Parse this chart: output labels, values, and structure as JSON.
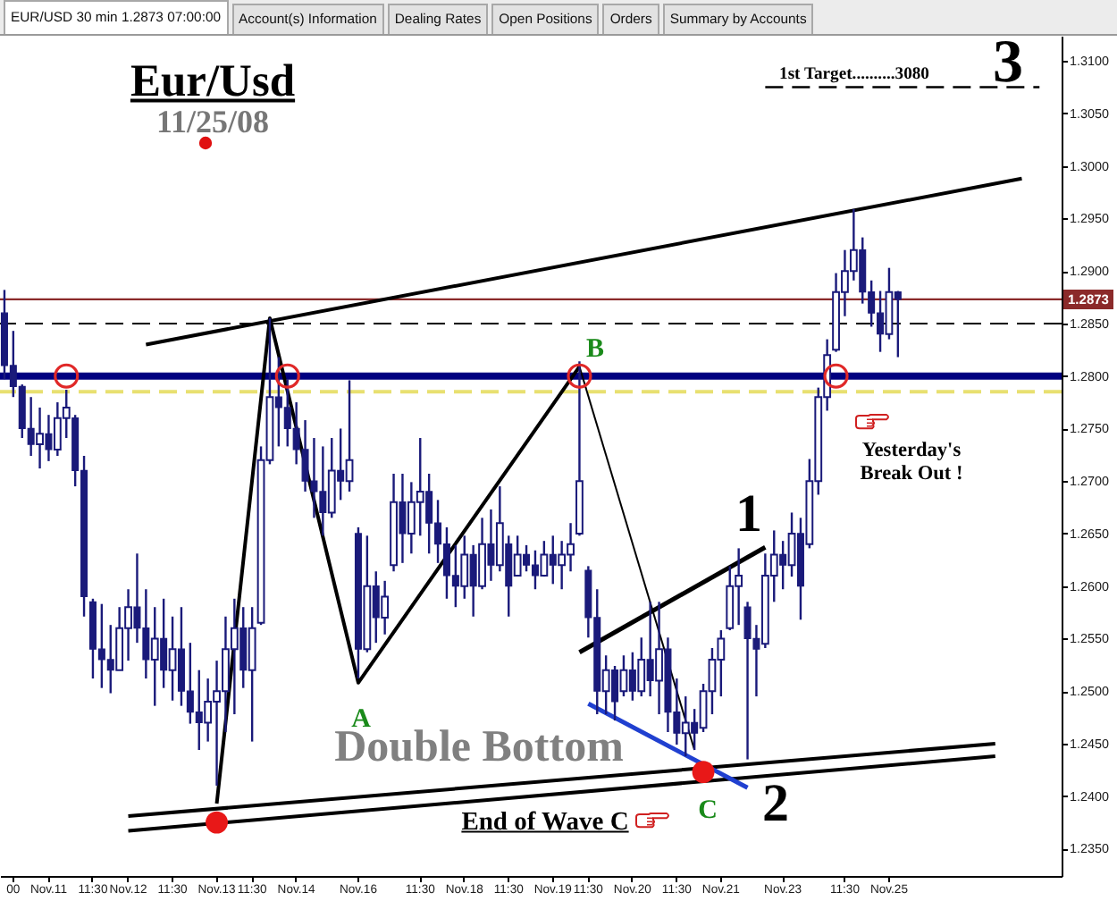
{
  "chart_data": {
    "type": "candlestick",
    "title": "Eur/Usd",
    "subtitle": "11/25/08",
    "color": "#1a1a7a",
    "categories": [
      null,
      "00",
      null,
      null,
      null,
      "Nov.11",
      null,
      null,
      null,
      null,
      "11:30",
      null,
      null,
      null,
      "Nov.12",
      null,
      null,
      null,
      null,
      "11:30",
      null,
      null,
      null,
      null,
      "Nov.13",
      null,
      null,
      null,
      "11:30",
      null,
      null,
      null,
      null,
      "Nov.14",
      null,
      null,
      null,
      null,
      null,
      null,
      "Nov.16",
      null,
      null,
      null,
      null,
      null,
      null,
      "11:30",
      null,
      null,
      null,
      null,
      "Nov.18",
      null,
      null,
      null,
      null,
      "11:30",
      null,
      null,
      null,
      null,
      "Nov.19",
      null,
      null,
      null,
      "11:30",
      null,
      null,
      null,
      null,
      "Nov.20",
      null,
      null,
      null,
      null,
      "11:30",
      null,
      null,
      null,
      null,
      "Nov.21",
      null,
      null,
      null,
      null,
      null,
      null,
      "Nov.23",
      null,
      null,
      null,
      null,
      null,
      null,
      "11:30",
      null,
      null,
      null,
      null,
      "Nov.25",
      null,
      null,
      null,
      null,
      null,
      null,
      null,
      null,
      null,
      null,
      null,
      null,
      null,
      null,
      null,
      null,
      null,
      null,
      null
    ],
    "ohlc": [
      [
        1.286,
        1.2882,
        1.2797,
        1.281
      ],
      [
        1.281,
        1.2843,
        1.278,
        1.279
      ],
      [
        1.279,
        1.2792,
        1.2741,
        1.275
      ],
      [
        1.275,
        1.278,
        1.2724,
        1.2735
      ],
      [
        1.2735,
        1.277,
        1.2712,
        1.2745
      ],
      [
        1.2745,
        1.2763,
        1.2719,
        1.273
      ],
      [
        1.273,
        1.2775,
        1.2724,
        1.276
      ],
      [
        1.276,
        1.2787,
        1.2741,
        1.277
      ],
      [
        1.276,
        1.2763,
        1.2695,
        1.271
      ],
      [
        1.271,
        1.2724,
        1.2571,
        1.259
      ],
      [
        1.2585,
        1.2588,
        1.2512,
        1.254
      ],
      [
        1.254,
        1.2583,
        1.2503,
        1.253
      ],
      [
        1.253,
        1.2563,
        1.2498,
        1.252
      ],
      [
        1.252,
        1.258,
        1.252,
        1.256
      ],
      [
        1.256,
        1.2597,
        1.2529,
        1.258
      ],
      [
        1.258,
        1.2631,
        1.2546,
        1.256
      ],
      [
        1.256,
        1.2597,
        1.2512,
        1.253
      ],
      [
        1.253,
        1.258,
        1.2486,
        1.255
      ],
      [
        1.255,
        1.2588,
        1.2503,
        1.252
      ],
      [
        1.252,
        1.2571,
        1.2491,
        1.254
      ],
      [
        1.254,
        1.258,
        1.2486,
        1.25
      ],
      [
        1.25,
        1.2546,
        1.2469,
        1.248
      ],
      [
        1.248,
        1.252,
        1.2444,
        1.247
      ],
      [
        1.247,
        1.2512,
        1.2452,
        1.249
      ],
      [
        1.249,
        1.2529,
        1.241,
        1.25
      ],
      [
        1.25,
        1.2571,
        1.2461,
        1.254
      ],
      [
        1.254,
        1.2588,
        1.2478,
        1.256
      ],
      [
        1.256,
        1.258,
        1.2503,
        1.252
      ],
      [
        1.252,
        1.258,
        1.2452,
        1.256
      ],
      [
        1.2565,
        1.2733,
        1.2563,
        1.272
      ],
      [
        1.272,
        1.2855,
        1.2716,
        1.278
      ],
      [
        1.278,
        1.2818,
        1.2733,
        1.277
      ],
      [
        1.277,
        1.2797,
        1.2733,
        1.275
      ],
      [
        1.275,
        1.2775,
        1.2716,
        1.273
      ],
      [
        1.273,
        1.2758,
        1.269,
        1.27
      ],
      [
        1.27,
        1.2741,
        1.2665,
        1.269
      ],
      [
        1.269,
        1.2733,
        1.2648,
        1.267
      ],
      [
        1.267,
        1.2741,
        1.2665,
        1.271
      ],
      [
        1.271,
        1.275,
        1.2682,
        1.27
      ],
      [
        1.27,
        1.2796,
        1.269,
        1.272
      ],
      [
        1.265,
        1.2656,
        1.2512,
        1.254
      ],
      [
        1.254,
        1.2648,
        1.2537,
        1.26
      ],
      [
        1.26,
        1.2614,
        1.2546,
        1.257
      ],
      [
        1.257,
        1.2605,
        1.2554,
        1.259
      ],
      [
        1.262,
        1.2707,
        1.2614,
        1.268
      ],
      [
        1.268,
        1.2707,
        1.2622,
        1.265
      ],
      [
        1.265,
        1.2699,
        1.2631,
        1.268
      ],
      [
        1.268,
        1.2741,
        1.2648,
        1.269
      ],
      [
        1.269,
        1.2707,
        1.2631,
        1.266
      ],
      [
        1.266,
        1.2682,
        1.2622,
        1.264
      ],
      [
        1.264,
        1.2656,
        1.2588,
        1.261
      ],
      [
        1.261,
        1.2639,
        1.258,
        1.26
      ],
      [
        1.26,
        1.2648,
        1.2588,
        1.263
      ],
      [
        1.263,
        1.2639,
        1.2571,
        1.26
      ],
      [
        1.26,
        1.2665,
        1.2597,
        1.264
      ],
      [
        1.264,
        1.2673,
        1.2605,
        1.262
      ],
      [
        1.262,
        1.2695,
        1.2614,
        1.266
      ],
      [
        1.264,
        1.2648,
        1.2571,
        1.26
      ],
      [
        1.261,
        1.2648,
        1.261,
        1.263
      ],
      [
        1.263,
        1.2639,
        1.2614,
        1.262
      ],
      [
        1.262,
        1.2634,
        1.2597,
        1.261
      ],
      [
        1.261,
        1.2643,
        1.2609,
        1.263
      ],
      [
        1.263,
        1.2648,
        1.2602,
        1.262
      ],
      [
        1.262,
        1.2643,
        1.2597,
        1.263
      ],
      [
        1.263,
        1.266,
        1.2614,
        1.264
      ],
      [
        1.265,
        1.2814,
        1.2648,
        1.27
      ],
      [
        1.2615,
        1.2619,
        1.2551,
        1.257
      ],
      [
        1.257,
        1.2597,
        1.2478,
        1.25
      ],
      [
        1.25,
        1.2534,
        1.2478,
        1.252
      ],
      [
        1.252,
        1.2524,
        1.2472,
        1.249
      ],
      [
        1.25,
        1.2534,
        1.2495,
        1.252
      ],
      [
        1.252,
        1.2537,
        1.2491,
        1.25
      ],
      [
        1.25,
        1.2551,
        1.2495,
        1.253
      ],
      [
        1.253,
        1.2585,
        1.2495,
        1.251
      ],
      [
        1.251,
        1.2585,
        1.2478,
        1.254
      ],
      [
        1.254,
        1.2551,
        1.2461,
        1.248
      ],
      [
        1.248,
        1.2512,
        1.2449,
        1.246
      ],
      [
        1.246,
        1.2495,
        1.2438,
        1.247
      ],
      [
        1.247,
        1.2483,
        1.2444,
        1.246
      ],
      [
        1.2465,
        1.2507,
        1.2461,
        1.25
      ],
      [
        1.25,
        1.2541,
        1.2478,
        1.253
      ],
      [
        1.253,
        1.2558,
        1.2495,
        1.255
      ],
      [
        1.256,
        1.2619,
        1.2558,
        1.26
      ],
      [
        1.26,
        1.2636,
        1.2563,
        1.261
      ],
      [
        1.258,
        1.2585,
        1.2435,
        1.255
      ],
      [
        1.255,
        1.2563,
        1.2495,
        1.254
      ],
      [
        1.2545,
        1.2631,
        1.2541,
        1.261
      ],
      [
        1.261,
        1.2653,
        1.2585,
        1.263
      ],
      [
        1.263,
        1.2643,
        1.2597,
        1.262
      ],
      [
        1.262,
        1.267,
        1.2609,
        1.265
      ],
      [
        1.265,
        1.2665,
        1.2568,
        1.26
      ],
      [
        1.264,
        1.2721,
        1.2636,
        1.27
      ],
      [
        1.27,
        1.2789,
        1.2687,
        1.278
      ],
      [
        1.278,
        1.2835,
        1.2767,
        1.282
      ],
      [
        1.2825,
        1.2898,
        1.2823,
        1.288
      ],
      [
        1.288,
        1.292,
        1.2857,
        1.29
      ],
      [
        1.29,
        1.2959,
        1.2891,
        1.292
      ],
      [
        1.292,
        1.2932,
        1.2869,
        1.288
      ],
      [
        1.288,
        1.2891,
        1.2847,
        1.286
      ],
      [
        1.286,
        1.2881,
        1.2823,
        1.284
      ],
      [
        1.284,
        1.2903,
        1.2835,
        1.288
      ],
      [
        1.288,
        1.2881,
        1.2818,
        1.2873
      ],
      null,
      null,
      null,
      null,
      null,
      null,
      null,
      null,
      null,
      null,
      null,
      null,
      null,
      null,
      null,
      null,
      null,
      null
    ],
    "series": [
      {
        "type": "line",
        "color": "#000000",
        "values": [
          null,
          null,
          null,
          null,
          null,
          null,
          null,
          null,
          null,
          null,
          null,
          null,
          null,
          null,
          null,
          null,
          null,
          null,
          null,
          null,
          null,
          null,
          null,
          null,
          1.2393,
          null,
          null,
          null,
          null,
          null,
          1.2855,
          null,
          null,
          null,
          null,
          null,
          null,
          null,
          null,
          null,
          1.2508,
          null,
          null,
          null,
          null,
          null,
          null,
          null,
          null,
          null,
          null,
          null,
          null,
          null,
          null,
          null,
          null,
          null,
          null,
          null,
          null,
          null,
          null,
          null,
          null,
          1.2809,
          null,
          null,
          null,
          null,
          null,
          null,
          null,
          null,
          null,
          null,
          null,
          null,
          null,
          null,
          null,
          null,
          null,
          null,
          null,
          null,
          null,
          null,
          null,
          null,
          null,
          null,
          null,
          null,
          null,
          null,
          null,
          null,
          null,
          null,
          null,
          null,
          null,
          null,
          null,
          null,
          null,
          null,
          null,
          null,
          null,
          null,
          null,
          null,
          null,
          null,
          null,
          null,
          null,
          null
        ]
      },
      {
        "type": "line",
        "color": "#000000",
        "values": [
          null,
          null,
          null,
          null,
          null,
          null,
          null,
          null,
          null,
          null,
          null,
          null,
          null,
          null,
          null,
          null,
          null,
          null,
          null,
          null,
          null,
          null,
          null,
          null,
          null,
          null,
          null,
          null,
          null,
          null,
          null,
          null,
          null,
          null,
          null,
          null,
          null,
          null,
          null,
          null,
          null,
          null,
          null,
          null,
          null,
          null,
          null,
          null,
          null,
          null,
          null,
          null,
          null,
          null,
          null,
          null,
          null,
          null,
          null,
          null,
          null,
          null,
          null,
          null,
          null,
          1.2809,
          null,
          null,
          null,
          null,
          null,
          null,
          null,
          null,
          null,
          null,
          null,
          null,
          1.2444,
          null,
          null,
          null,
          null,
          null,
          null,
          null,
          null,
          null,
          null,
          null,
          null,
          null,
          null,
          null,
          null,
          null,
          null,
          null,
          null,
          null,
          null,
          null,
          null,
          null,
          null,
          null,
          null,
          null,
          null,
          null,
          null,
          null,
          null,
          null,
          null,
          null,
          null,
          null,
          null,
          null
        ]
      },
      {
        "type": "line",
        "color": "#000000",
        "values": [
          null,
          null,
          null,
          null,
          null,
          null,
          null,
          null,
          null,
          null,
          null,
          null,
          null,
          null,
          null,
          null,
          1.283,
          null,
          null,
          null,
          null,
          null,
          null,
          null,
          null,
          null,
          null,
          null,
          null,
          null,
          null,
          null,
          null,
          null,
          null,
          null,
          null,
          null,
          null,
          null,
          null,
          null,
          null,
          null,
          null,
          null,
          null,
          null,
          null,
          null,
          null,
          null,
          null,
          null,
          null,
          null,
          null,
          null,
          null,
          null,
          null,
          null,
          null,
          null,
          null,
          null,
          null,
          null,
          null,
          null,
          null,
          null,
          null,
          null,
          null,
          null,
          null,
          null,
          null,
          null,
          null,
          null,
          null,
          null,
          null,
          null,
          null,
          null,
          null,
          null,
          null,
          null,
          null,
          null,
          null,
          null,
          null,
          null,
          null,
          null,
          null,
          null,
          null,
          null,
          null,
          null,
          null,
          null,
          null,
          null,
          null,
          null,
          null,
          null,
          null,
          1.2988,
          null,
          null,
          null,
          null
        ]
      },
      {
        "type": "line",
        "color": "#000000",
        "values": [
          null,
          null,
          null,
          null,
          null,
          null,
          null,
          null,
          null,
          null,
          null,
          null,
          null,
          null,
          1.2381,
          null,
          null,
          null,
          null,
          null,
          null,
          null,
          null,
          null,
          null,
          null,
          null,
          null,
          null,
          null,
          null,
          null,
          null,
          null,
          null,
          null,
          null,
          null,
          null,
          null,
          null,
          null,
          null,
          null,
          null,
          null,
          null,
          null,
          null,
          null,
          null,
          null,
          null,
          null,
          null,
          null,
          null,
          null,
          null,
          null,
          null,
          null,
          null,
          null,
          null,
          null,
          null,
          null,
          null,
          null,
          null,
          null,
          null,
          null,
          null,
          null,
          null,
          null,
          null,
          null,
          null,
          null,
          null,
          null,
          null,
          null,
          null,
          null,
          null,
          null,
          null,
          null,
          null,
          null,
          null,
          null,
          null,
          null,
          null,
          null,
          null,
          null,
          null,
          null,
          null,
          null,
          null,
          null,
          null,
          null,
          null,
          null,
          1.245,
          null,
          null,
          null,
          null,
          null,
          null,
          null
        ]
      },
      {
        "type": "line",
        "color": "#000000",
        "values": [
          null,
          null,
          null,
          null,
          null,
          null,
          null,
          null,
          null,
          null,
          null,
          null,
          null,
          null,
          1.2367,
          null,
          null,
          null,
          null,
          null,
          null,
          null,
          null,
          null,
          null,
          null,
          null,
          null,
          null,
          null,
          null,
          null,
          null,
          null,
          null,
          null,
          null,
          null,
          null,
          null,
          null,
          null,
          null,
          null,
          null,
          null,
          null,
          null,
          null,
          null,
          null,
          null,
          null,
          null,
          null,
          null,
          null,
          null,
          null,
          null,
          null,
          null,
          null,
          null,
          null,
          null,
          null,
          null,
          null,
          null,
          null,
          null,
          null,
          null,
          null,
          null,
          null,
          null,
          null,
          null,
          null,
          null,
          null,
          null,
          null,
          null,
          null,
          null,
          null,
          null,
          null,
          null,
          null,
          null,
          null,
          null,
          null,
          null,
          null,
          null,
          null,
          null,
          null,
          null,
          null,
          null,
          null,
          null,
          null,
          null,
          null,
          null,
          1.2438,
          null,
          null,
          null,
          null,
          null,
          null,
          null
        ]
      },
      {
        "type": "line",
        "color": "#000000",
        "values": [
          null,
          null,
          null,
          null,
          null,
          null,
          null,
          null,
          null,
          null,
          null,
          null,
          null,
          null,
          null,
          null,
          null,
          null,
          null,
          null,
          null,
          null,
          null,
          null,
          null,
          null,
          null,
          null,
          null,
          null,
          null,
          null,
          null,
          null,
          null,
          null,
          null,
          null,
          null,
          null,
          null,
          null,
          null,
          null,
          null,
          null,
          null,
          null,
          null,
          null,
          null,
          null,
          null,
          null,
          null,
          null,
          null,
          null,
          null,
          null,
          null,
          null,
          null,
          null,
          null,
          1.2537,
          null,
          null,
          null,
          null,
          null,
          null,
          null,
          null,
          null,
          null,
          null,
          null,
          null,
          null,
          null,
          null,
          null,
          null,
          null,
          null,
          1.2637,
          null,
          null,
          null,
          null,
          null,
          null,
          null,
          null,
          null,
          null,
          null,
          null,
          null,
          null,
          null,
          null,
          null,
          null,
          null,
          null,
          null,
          null,
          null,
          null,
          null,
          null,
          null,
          null,
          null,
          null,
          null,
          null,
          null
        ]
      },
      {
        "type": "line",
        "color": "#2040d0",
        "values": [
          null,
          null,
          null,
          null,
          null,
          null,
          null,
          null,
          null,
          null,
          null,
          null,
          null,
          null,
          null,
          null,
          null,
          null,
          null,
          null,
          null,
          null,
          null,
          null,
          null,
          null,
          null,
          null,
          null,
          null,
          null,
          null,
          null,
          null,
          null,
          null,
          null,
          null,
          null,
          null,
          null,
          null,
          null,
          null,
          null,
          null,
          null,
          null,
          null,
          null,
          null,
          null,
          null,
          null,
          null,
          null,
          null,
          null,
          null,
          null,
          null,
          null,
          null,
          null,
          null,
          null,
          1.2488,
          null,
          null,
          null,
          null,
          null,
          null,
          null,
          null,
          null,
          null,
          null,
          null,
          null,
          null,
          null,
          null,
          null,
          1.2408,
          null,
          null,
          null,
          null,
          null,
          null,
          null,
          null,
          null,
          null,
          null,
          null,
          null,
          null,
          null,
          null,
          null,
          null,
          null,
          null,
          null,
          null,
          null,
          null,
          null,
          null,
          null,
          null,
          null,
          null,
          null,
          null,
          null,
          null,
          null
        ]
      },
      {
        "type": "line",
        "color": "#000000",
        "line_style": "dashed",
        "values": [
          null,
          null,
          null,
          null,
          null,
          null,
          null,
          null,
          null,
          null,
          null,
          null,
          null,
          null,
          null,
          null,
          null,
          null,
          null,
          null,
          null,
          null,
          null,
          null,
          null,
          null,
          null,
          null,
          null,
          null,
          null,
          null,
          null,
          null,
          null,
          null,
          null,
          null,
          null,
          null,
          null,
          null,
          null,
          null,
          null,
          null,
          null,
          null,
          null,
          null,
          null,
          null,
          null,
          null,
          null,
          null,
          null,
          null,
          null,
          null,
          null,
          null,
          null,
          null,
          null,
          null,
          null,
          null,
          null,
          null,
          null,
          null,
          null,
          null,
          null,
          null,
          null,
          null,
          null,
          null,
          null,
          null,
          null,
          null,
          null,
          null,
          1.3075,
          null,
          null,
          null,
          null,
          null,
          null,
          null,
          null,
          null,
          null,
          null,
          null,
          null,
          null,
          null,
          null,
          null,
          null,
          null,
          null,
          null,
          null,
          null,
          null,
          null,
          null,
          null,
          null,
          null,
          null,
          1.3075,
          null,
          null
        ]
      },
      {
        "type": "scatter",
        "color": "#e02828",
        "marker": "circle",
        "values": [
          null,
          null,
          null,
          null,
          null,
          null,
          null,
          1.28,
          null,
          null,
          null,
          null,
          null,
          null,
          null,
          null,
          null,
          null,
          null,
          null,
          null,
          null,
          null,
          null,
          null,
          null,
          null,
          null,
          null,
          null,
          null,
          null,
          1.28,
          null,
          null,
          null,
          null,
          null,
          null,
          null,
          null,
          null,
          null,
          null,
          null,
          null,
          null,
          null,
          null,
          null,
          null,
          null,
          null,
          null,
          null,
          null,
          null,
          null,
          null,
          null,
          null,
          null,
          null,
          null,
          null,
          1.28,
          null,
          null,
          null,
          null,
          null,
          null,
          null,
          null,
          null,
          null,
          null,
          null,
          null,
          null,
          null,
          null,
          null,
          null,
          null,
          null,
          null,
          null,
          null,
          null,
          null,
          null,
          null,
          null,
          1.28,
          null,
          null,
          null,
          null,
          null,
          null,
          null,
          null,
          null,
          null,
          null,
          null,
          null,
          null,
          null,
          null,
          null,
          null,
          null,
          null,
          null,
          null,
          null,
          null,
          null
        ]
      },
      {
        "type": "scatter",
        "color": "#e81818",
        "marker": "circle",
        "values": [
          null,
          null,
          null,
          null,
          null,
          null,
          null,
          null,
          null,
          null,
          null,
          null,
          null,
          null,
          null,
          null,
          null,
          null,
          null,
          null,
          null,
          null,
          null,
          null,
          1.2375,
          null,
          null,
          null,
          null,
          null,
          null,
          null,
          null,
          null,
          null,
          null,
          null,
          null,
          null,
          null,
          null,
          null,
          null,
          null,
          null,
          null,
          null,
          null,
          null,
          null,
          null,
          null,
          null,
          null,
          null,
          null,
          null,
          null,
          null,
          null,
          null,
          null,
          null,
          null,
          null,
          null,
          null,
          null,
          null,
          null,
          null,
          null,
          null,
          null,
          null,
          null,
          null,
          null,
          null,
          1.2423,
          null,
          null,
          null,
          null,
          null,
          null,
          null,
          null,
          null,
          null,
          null,
          null,
          null,
          null,
          null,
          null,
          null,
          null,
          null,
          null,
          null,
          null,
          null,
          null,
          null,
          null,
          null,
          null,
          null,
          null,
          null,
          null,
          null,
          null,
          null,
          null,
          null,
          null,
          null,
          null
        ]
      }
    ],
    "ref_lines": [
      {
        "axis": "y",
        "value": 1.28,
        "color": "#000080"
      },
      {
        "axis": "y",
        "value": 1.2785,
        "color": "#e8e070",
        "line_style": "dashed"
      },
      {
        "axis": "y",
        "value": 1.285,
        "color": "#000000",
        "line_style": "dashed"
      },
      {
        "axis": "y",
        "value": 1.2873,
        "color": "#8b2a2a",
        "label": "1.2873"
      }
    ],
    "ylim": [
      1.2324,
      1.3124
    ],
    "yticks": [
      {
        "value": 1.235,
        "label": "1.2350"
      },
      {
        "value": 1.24,
        "label": "1.2400"
      },
      {
        "value": 1.245,
        "label": "1.2450"
      },
      {
        "value": 1.25,
        "label": "1.2500"
      },
      {
        "value": 1.255,
        "label": "1.2550"
      },
      {
        "value": 1.26,
        "label": "1.2600"
      },
      {
        "value": 1.265,
        "label": "1.2650"
      },
      {
        "value": 1.27,
        "label": "1.2700"
      },
      {
        "value": 1.275,
        "label": "1.2750"
      },
      {
        "value": 1.28,
        "label": "1.2800"
      },
      {
        "value": 1.285,
        "label": "1.2850"
      },
      {
        "value": 1.29,
        "label": "1.2900"
      },
      {
        "value": 1.295,
        "label": "1.2950"
      },
      {
        "value": 1.3,
        "label": "1.3000"
      },
      {
        "value": 1.305,
        "label": "1.3050"
      },
      {
        "value": 1.31,
        "label": "1.3100"
      }
    ],
    "annotations": [
      "EUR/USD 30 min 1.2873 07:00:00",
      "Account(s) Information",
      "Dealing Rates",
      "Open Positions",
      "Orders",
      "Summary by Accounts",
      "3",
      "1st Target..........3080",
      "A",
      "B",
      "C",
      "1",
      "2",
      "Double Bottom",
      "End of Wave C",
      "Yesterday's Break Out !"
    ]
  }
}
